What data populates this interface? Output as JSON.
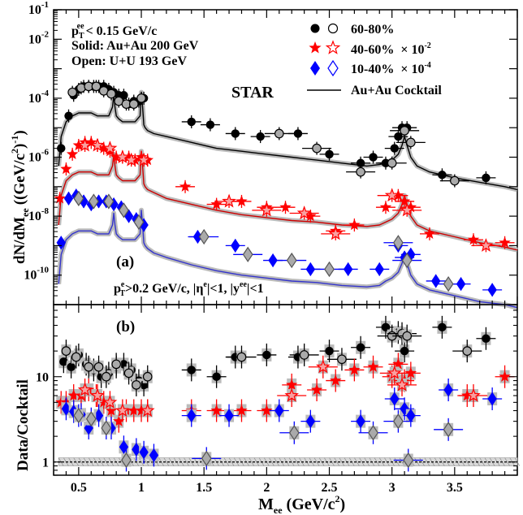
{
  "chart_data": [
    {
      "panel": "(a)",
      "type": "scatter",
      "xlim": [
        0.3,
        4.0
      ],
      "ylim": [
        -11,
        -1
      ],
      "log_y": true,
      "ylabel_main": "dN/dM",
      "ylabel_sub": "ee",
      "ylabel_units": "((GeV/c",
      "ylabel_units_sup": "2",
      "ylabel_units_end": ")",
      "ylabel_units_sup2": "-1",
      "ylabel_units_close": ")",
      "ytick_labels": [
        "10^-10",
        "10^-8",
        "10^-6",
        "10^-4",
        "10^-2",
        "10^-1"
      ],
      "text_cut_line1": "< 0.15 GeV/c",
      "text_cut_prefix": "p",
      "text_cut_sub": "T",
      "text_cut_sup": "ee",
      "text_solid": "Solid: Au+Au 200 GeV",
      "text_open": "Open: U+U 193 GeV",
      "text_experiment": "STAR",
      "text_kin_cut": "p_T^e>0.2 GeV/c, |η^e|<1, |y^ee|<1",
      "legend": [
        {
          "label": "60-80%",
          "marker": "circle",
          "color": "#000000"
        },
        {
          "label": "40-60%  × 10^-2",
          "marker": "star",
          "color": "#ff0000"
        },
        {
          "label": "10-40%  × 10^-4",
          "marker": "diamond",
          "color": "#0000ff"
        },
        {
          "label": "Au+Au Cocktail",
          "marker": "line",
          "color": "#000000"
        }
      ],
      "series": [
        {
          "name": "60-80%",
          "color": "#000000",
          "marker": "circle",
          "x": [
            0.36,
            0.42,
            0.46,
            0.5,
            0.54,
            0.58,
            0.62,
            0.66,
            0.7,
            0.74,
            0.78,
            0.82,
            0.86,
            0.9,
            0.94,
            0.98,
            1.02,
            1.4,
            1.55,
            1.75,
            1.95,
            2.25,
            2.5,
            2.75,
            2.85,
            2.95,
            3.02,
            3.05,
            3.08,
            3.12,
            3.4,
            3.75
          ],
          "y": [
            -5.7,
            -4.6,
            -3.9,
            -3.7,
            -3.6,
            -3.6,
            -3.6,
            -3.6,
            -3.6,
            -3.7,
            -3.8,
            -3.9,
            -3.9,
            -4.2,
            -4.1,
            -4.1,
            -4.0,
            -4.8,
            -4.9,
            -5.2,
            -5.3,
            -5.2,
            -5.9,
            -6.2,
            -6.0,
            -6.2,
            -5.7,
            -5.3,
            -5.0,
            -5.0,
            -6.6,
            -6.7
          ]
        },
        {
          "name": "60-80% U+U",
          "color": "#000000",
          "marker": "open-circle",
          "x": [
            0.45,
            0.52,
            0.58,
            0.64,
            0.7,
            0.76,
            0.82,
            0.88,
            0.94,
            1.0,
            2.1,
            2.4,
            2.75,
            3.0,
            3.1,
            3.15,
            3.5
          ],
          "y": [
            -3.8,
            -3.65,
            -3.6,
            -3.6,
            -3.75,
            -3.85,
            -4.1,
            -4.2,
            -4.2,
            -4.0,
            -5.2,
            -5.7,
            -6.5,
            -6.2,
            -5.1,
            -5.5,
            -6.8
          ]
        },
        {
          "name": "40-60%  × 10^-2",
          "color": "#ff0000",
          "marker": "star",
          "x": [
            0.35,
            0.4,
            0.45,
            0.5,
            0.55,
            0.6,
            0.65,
            0.7,
            0.75,
            0.8,
            0.85,
            0.9,
            0.95,
            1.0,
            1.05,
            1.35,
            1.6,
            1.8,
            2.0,
            2.15,
            2.35,
            2.55,
            2.7,
            2.95,
            3.05,
            3.1,
            3.15,
            3.3,
            3.65,
            3.9
          ],
          "y": [
            -7.4,
            -6.4,
            -5.9,
            -5.6,
            -5.5,
            -5.5,
            -5.6,
            -5.7,
            -5.8,
            -6.0,
            -6.0,
            -6.0,
            -6.1,
            -6.0,
            -6.1,
            -7.0,
            -7.6,
            -7.5,
            -7.7,
            -7.7,
            -8.0,
            -8.5,
            -8.3,
            -7.7,
            -7.3,
            -7.5,
            -7.7,
            -8.6,
            -8.8,
            -8.9
          ]
        },
        {
          "name": "40-60% U+U",
          "color": "#ff0000",
          "marker": "open-star",
          "x": [
            0.55,
            0.65,
            0.75,
            0.85,
            0.92,
            1.02,
            1.7,
            2.0,
            2.3,
            2.55,
            3.0,
            3.12,
            3.75
          ],
          "y": [
            -5.6,
            -5.6,
            -5.7,
            -6.0,
            -6.1,
            -6.1,
            -7.5,
            -7.8,
            -7.9,
            -8.6,
            -7.3,
            -7.8,
            -9.0
          ]
        },
        {
          "name": "10-40%  × 10^-4",
          "color": "#0000ff",
          "marker": "diamond",
          "x": [
            0.36,
            0.42,
            0.48,
            0.54,
            0.6,
            0.66,
            0.72,
            0.78,
            0.84,
            0.9,
            0.96,
            1.02,
            1.45,
            1.75,
            2.05,
            2.35,
            2.65,
            2.9,
            3.05,
            3.1,
            3.15,
            3.35,
            3.55,
            3.8
          ],
          "y": [
            -8.9,
            -7.4,
            -7.3,
            -7.5,
            -7.6,
            -7.5,
            -7.5,
            -7.6,
            -7.7,
            -8.0,
            -8.1,
            -8.3,
            -8.7,
            -9.0,
            -9.5,
            -9.8,
            -9.8,
            -9.8,
            -9.0,
            -9.4,
            -9.3,
            -10.2,
            -10.3,
            -10.5
          ]
        },
        {
          "name": "10-40% U+U",
          "color": "#0000ff",
          "marker": "open-diamond",
          "x": [
            0.5,
            0.62,
            0.74,
            0.86,
            0.98,
            1.5,
            1.85,
            2.2,
            2.5,
            3.05,
            3.12,
            3.45
          ],
          "y": [
            -7.4,
            -7.5,
            -7.5,
            -7.8,
            -8.2,
            -8.7,
            -9.3,
            -9.5,
            -9.8,
            -8.9,
            -9.5,
            -10.3
          ]
        }
      ],
      "cocktails": [
        {
          "name": "60-80% cocktail",
          "color": "#000000",
          "x": [
            0.34,
            0.36,
            0.4,
            0.45,
            0.5,
            0.55,
            0.6,
            0.65,
            0.7,
            0.74,
            0.77,
            0.78,
            0.79,
            0.8,
            0.82,
            0.85,
            0.9,
            0.95,
            0.99,
            1.0,
            1.01,
            1.02,
            1.03,
            1.05,
            1.1,
            1.2,
            1.4,
            1.6,
            1.8,
            2.0,
            2.2,
            2.4,
            2.6,
            2.8,
            2.9,
            2.95,
            3.0,
            3.05,
            3.08,
            3.1,
            3.12,
            3.15,
            3.2,
            3.3,
            3.5,
            3.7,
            3.9,
            4.0
          ],
          "y": [
            -6.3,
            -5.3,
            -4.8,
            -4.6,
            -4.5,
            -4.5,
            -4.5,
            -4.6,
            -4.6,
            -4.6,
            -4.3,
            -3.9,
            -4.3,
            -4.6,
            -4.7,
            -4.8,
            -4.8,
            -4.8,
            -4.6,
            -3.8,
            -4.3,
            -4.9,
            -5.0,
            -5.1,
            -5.2,
            -5.3,
            -5.5,
            -5.7,
            -5.8,
            -5.9,
            -6.0,
            -6.1,
            -6.2,
            -6.3,
            -6.25,
            -6.2,
            -6.1,
            -5.9,
            -5.6,
            -5.3,
            -5.6,
            -6.0,
            -6.3,
            -6.5,
            -6.7,
            -6.85,
            -7.0,
            -7.1
          ]
        },
        {
          "name": "40-60% cocktail",
          "color": "#cc0000",
          "x": [
            0.34,
            0.36,
            0.4,
            0.45,
            0.5,
            0.55,
            0.6,
            0.65,
            0.7,
            0.74,
            0.77,
            0.78,
            0.79,
            0.8,
            0.82,
            0.85,
            0.9,
            0.95,
            0.99,
            1.0,
            1.01,
            1.02,
            1.03,
            1.05,
            1.1,
            1.2,
            1.4,
            1.6,
            1.8,
            2.0,
            2.2,
            2.4,
            2.6,
            2.8,
            2.9,
            2.95,
            3.0,
            3.05,
            3.08,
            3.1,
            3.12,
            3.15,
            3.2,
            3.3,
            3.5,
            3.7,
            3.9,
            4.0
          ],
          "y": [
            -8.3,
            -7.3,
            -6.8,
            -6.6,
            -6.5,
            -6.5,
            -6.5,
            -6.6,
            -6.6,
            -6.6,
            -6.3,
            -5.9,
            -6.3,
            -6.6,
            -6.7,
            -6.8,
            -6.8,
            -6.8,
            -6.6,
            -5.8,
            -6.3,
            -6.9,
            -7.0,
            -7.1,
            -7.2,
            -7.4,
            -7.6,
            -7.8,
            -7.95,
            -8.05,
            -8.15,
            -8.2,
            -8.3,
            -8.35,
            -8.3,
            -8.2,
            -8.1,
            -7.9,
            -7.6,
            -7.3,
            -7.6,
            -8.0,
            -8.3,
            -8.5,
            -8.7,
            -8.9,
            -9.05,
            -9.15
          ]
        },
        {
          "name": "10-40% cocktail",
          "color": "#3333cc",
          "x": [
            0.34,
            0.36,
            0.4,
            0.45,
            0.5,
            0.55,
            0.6,
            0.65,
            0.7,
            0.74,
            0.77,
            0.78,
            0.79,
            0.8,
            0.82,
            0.85,
            0.9,
            0.95,
            0.99,
            1.0,
            1.01,
            1.02,
            1.03,
            1.05,
            1.1,
            1.2,
            1.4,
            1.6,
            1.8,
            2.0,
            2.2,
            2.4,
            2.6,
            2.8,
            2.9,
            2.95,
            3.0,
            3.05,
            3.08,
            3.1,
            3.12,
            3.15,
            3.2,
            3.3,
            3.5,
            3.7,
            3.9,
            4.0
          ],
          "y": [
            -10.3,
            -9.3,
            -8.8,
            -8.6,
            -8.5,
            -8.5,
            -8.5,
            -8.6,
            -8.6,
            -8.6,
            -8.3,
            -7.9,
            -8.3,
            -8.6,
            -8.7,
            -8.8,
            -8.8,
            -8.8,
            -8.6,
            -7.8,
            -8.3,
            -8.9,
            -9.0,
            -9.1,
            -9.25,
            -9.4,
            -9.65,
            -9.85,
            -10.0,
            -10.1,
            -10.2,
            -10.25,
            -10.35,
            -10.4,
            -10.35,
            -10.2,
            -10.1,
            -9.9,
            -9.6,
            -9.3,
            -9.6,
            -10.0,
            -10.3,
            -10.5,
            -10.7,
            -10.9,
            -11.0,
            -11.1
          ]
        }
      ]
    },
    {
      "panel": "(b)",
      "type": "scatter",
      "xlim": [
        0.3,
        4.0
      ],
      "ylim": [
        0.7,
        70
      ],
      "log_y": true,
      "xlabel": "M",
      "xlabel_sub": "ee",
      "xlabel_units": " (GeV/c",
      "xlabel_units_sup": "2",
      "xlabel_units_end": ")",
      "ylabel": "Data/Cocktail",
      "xtick_labels": [
        "0.5",
        "1",
        "1.5",
        "2",
        "2.5",
        "3",
        "3.5"
      ],
      "xticks": [
        0.5,
        1.0,
        1.5,
        2.0,
        2.5,
        3.0,
        3.5
      ],
      "ytick_labels": [
        "1",
        "10"
      ],
      "yticks": [
        1,
        10
      ],
      "series": [
        {
          "name": "60-80%",
          "color": "#000000",
          "marker": "circle",
          "x": [
            0.38,
            0.44,
            0.5,
            0.56,
            0.62,
            0.68,
            0.74,
            0.8,
            0.86,
            0.92,
            0.98,
            1.02,
            1.4,
            1.6,
            1.75,
            2.0,
            2.25,
            2.5,
            2.75,
            2.95,
            3.05,
            3.1,
            3.4,
            3.75
          ],
          "y": [
            15,
            13,
            18,
            14,
            12,
            10,
            11,
            13,
            14,
            12,
            9,
            8,
            12,
            10,
            17,
            18,
            17,
            20,
            22,
            38,
            33,
            20,
            38,
            28
          ]
        },
        {
          "name": "60-80% U+U",
          "color": "#000000",
          "marker": "open-circle",
          "x": [
            0.4,
            0.48,
            0.58,
            0.66,
            0.72,
            0.8,
            0.9,
            0.96,
            1.05,
            1.8,
            2.3,
            2.6,
            3.0,
            3.08,
            3.12,
            3.6
          ],
          "y": [
            20,
            17,
            13,
            13,
            10,
            14,
            11,
            8,
            10,
            17,
            18,
            16,
            30,
            32,
            30,
            20
          ]
        },
        {
          "name": "40-60%  × 10^-2",
          "color": "#ff0000",
          "marker": "star",
          "x": [
            0.36,
            0.4,
            0.46,
            0.52,
            0.58,
            0.64,
            0.7,
            0.76,
            0.82,
            0.88,
            0.94,
            1.0,
            1.05,
            1.4,
            1.6,
            1.8,
            2.0,
            2.2,
            2.4,
            2.55,
            2.7,
            2.85,
            3.0,
            3.05,
            3.1,
            3.15,
            3.6,
            3.9
          ],
          "y": [
            5,
            5,
            6,
            6,
            7,
            6,
            5,
            4,
            3,
            4,
            4,
            4,
            4,
            4,
            4,
            4,
            4,
            8,
            7,
            9,
            12,
            13,
            10,
            14,
            9,
            11,
            6,
            10
          ]
        },
        {
          "name": "40-60% U+U",
          "color": "#ff0000",
          "marker": "open-star",
          "x": [
            0.55,
            0.65,
            0.75,
            0.85,
            1.05,
            2.2,
            2.45,
            3.02,
            3.08,
            3.65
          ],
          "y": [
            7,
            6,
            5,
            4,
            4,
            6,
            13,
            11,
            8,
            6
          ]
        },
        {
          "name": "10-40%  × 10^-4",
          "color": "#0000ff",
          "marker": "diamond",
          "x": [
            0.4,
            0.46,
            0.52,
            0.58,
            0.66,
            0.76,
            0.86,
            0.96,
            1.02,
            1.1,
            1.4,
            1.7,
            2.1,
            2.35,
            2.75,
            3.02,
            3.1,
            3.15,
            3.45,
            3.8
          ],
          "y": [
            4.2,
            3.9,
            3.6,
            2.5,
            3.5,
            2.5,
            1.5,
            1.4,
            1.3,
            1.2,
            3.5,
            3.5,
            4.0,
            3.0,
            3.0,
            5.5,
            4.2,
            3.5,
            7.0,
            5.5
          ]
        },
        {
          "name": "10-40% U+U",
          "color": "#0000ff",
          "marker": "open-diamond",
          "x": [
            0.5,
            0.6,
            0.72,
            0.88,
            1.52,
            2.22,
            2.85,
            3.05,
            3.13,
            3.45
          ],
          "y": [
            3.5,
            3.2,
            2.5,
            1.05,
            1.1,
            2.2,
            2.2,
            3.0,
            1.05,
            2.4
          ]
        }
      ]
    }
  ]
}
